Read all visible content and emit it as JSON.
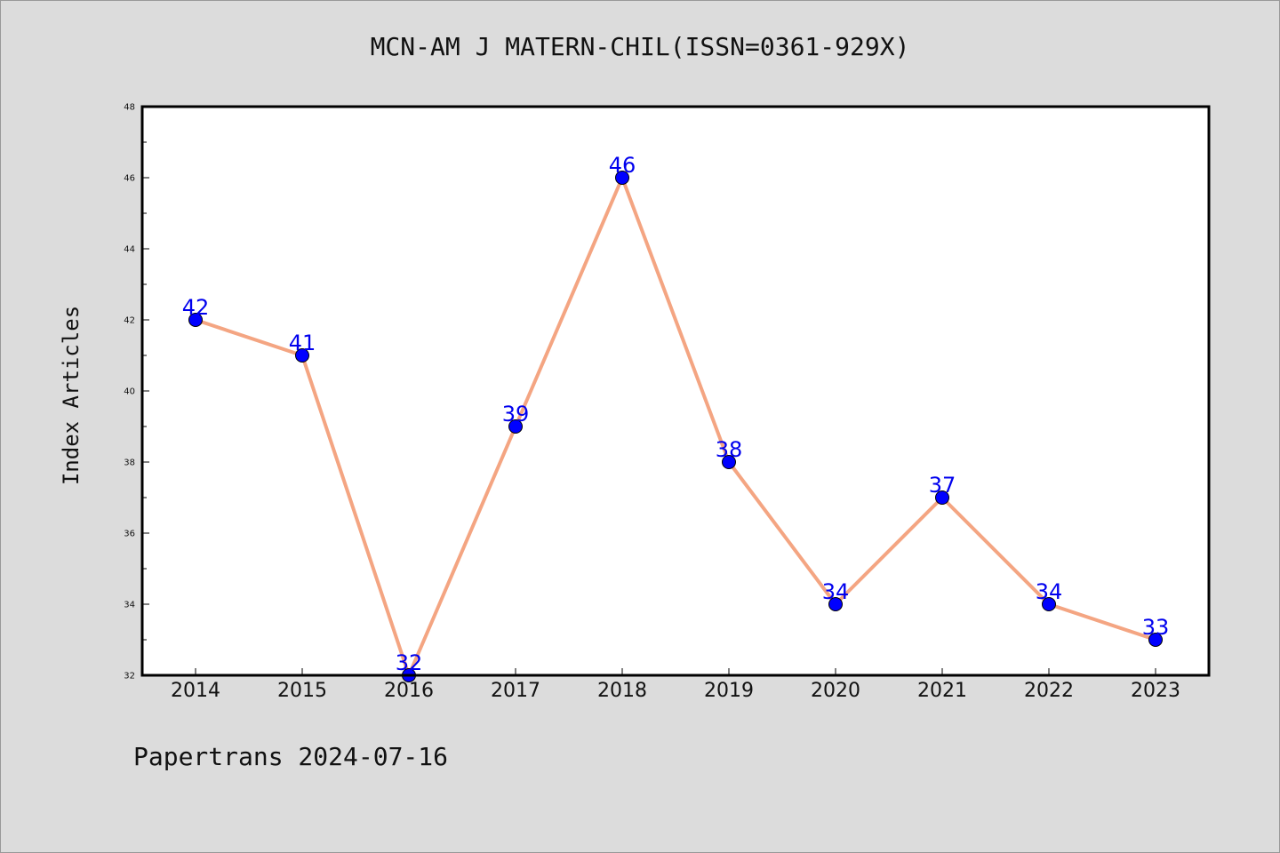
{
  "chart_data": {
    "type": "line",
    "title": "MCN-AM J MATERN-CHIL(ISSN=0361-929X)",
    "xlabel": "",
    "ylabel": "Index Articles",
    "categories": [
      "2014",
      "2015",
      "2016",
      "2017",
      "2018",
      "2019",
      "2020",
      "2021",
      "2022",
      "2023"
    ],
    "values": [
      42,
      41,
      32,
      39,
      46,
      38,
      34,
      37,
      34,
      33
    ],
    "ylim": [
      32,
      48
    ],
    "yticks": [
      32,
      34,
      36,
      38,
      40,
      42,
      44,
      46,
      48
    ],
    "grid": false,
    "line_color": "#f4a582",
    "marker_color": "#0000ff",
    "label_color": "#0000ee"
  },
  "footer": {
    "note": "Papertrans 2024-07-16"
  }
}
